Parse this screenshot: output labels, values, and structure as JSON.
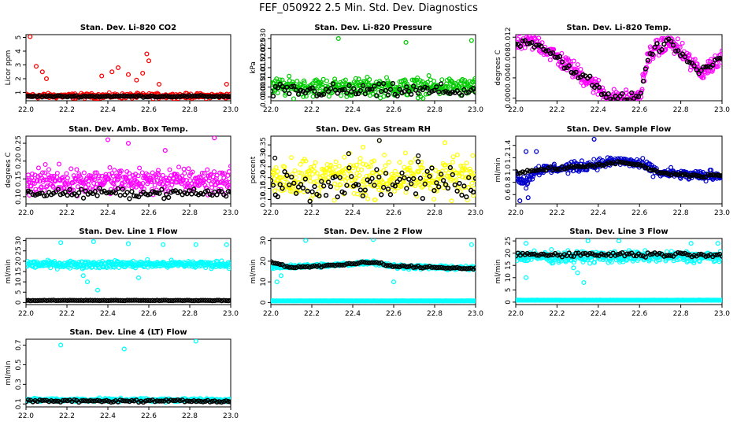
{
  "title": "FEF_050922  2.5 Min. Std. Dev. Diagnostics",
  "colors": {
    "background": "#ffffff",
    "frame": "#000000",
    "overlay": "#000000"
  },
  "chart_data": [
    {
      "type": "scatter",
      "title": "Stan. Dev. Li-820 CO2",
      "ylabel": "Licor ppm",
      "xlabel": "",
      "xlim": [
        22.0,
        23.0
      ],
      "ylim": [
        0.4,
        5.2
      ],
      "xticks": [
        "22.0",
        "22.2",
        "22.4",
        "22.6",
        "22.8",
        "23.0"
      ],
      "yticks": [
        "1",
        "2",
        "3",
        "4",
        "5"
      ],
      "series": [
        {
          "name": "scatter",
          "color": "#ff0000",
          "base": 0.75,
          "noise": 0.15,
          "spikes": [
            [
              22.02,
              5.05
            ],
            [
              22.05,
              2.9
            ],
            [
              22.08,
              2.5
            ],
            [
              22.1,
              2.0
            ],
            [
              22.37,
              2.2
            ],
            [
              22.42,
              2.5
            ],
            [
              22.45,
              2.8
            ],
            [
              22.5,
              2.3
            ],
            [
              22.54,
              1.9
            ],
            [
              22.57,
              2.4
            ],
            [
              22.59,
              3.8
            ],
            [
              22.6,
              3.3
            ],
            [
              22.65,
              1.6
            ],
            [
              22.98,
              1.6
            ]
          ]
        },
        {
          "name": "mean",
          "color": "#000000",
          "base": 0.72,
          "noise": 0.05,
          "spikes": []
        }
      ]
    },
    {
      "type": "scatter",
      "title": "Stan. Dev. Li-820 Pressure",
      "ylabel": "kPa",
      "xlabel": "",
      "xlim": [
        22.0,
        23.0
      ],
      "ylim": [
        -0.002,
        0.032
      ],
      "xticks": [
        "22.0",
        "22.2",
        "22.4",
        "22.6",
        "22.8",
        "23.0"
      ],
      "yticks": [
        "0.000",
        "0.005",
        "0.010",
        "0.015",
        "0.020",
        "0.025",
        "0.030"
      ],
      "series": [
        {
          "name": "scatter",
          "color": "#00cc00",
          "base": 0.005,
          "noise": 0.004,
          "spikes": [
            [
              22.33,
              0.03
            ],
            [
              22.66,
              0.028
            ],
            [
              22.98,
              0.029
            ]
          ]
        },
        {
          "name": "mean",
          "color": "#000000",
          "base": 0.003,
          "noise": 0.003,
          "spikes": []
        }
      ]
    },
    {
      "type": "scatter",
      "title": "Stan. Dev. Li-820 Temp.",
      "ylabel": "degrees C",
      "xlabel": "",
      "xlim": [
        22.0,
        23.0
      ],
      "ylim": [
        -0.0005,
        0.0125
      ],
      "xticks": [
        "22.0",
        "22.2",
        "22.4",
        "22.6",
        "22.8",
        "23.0"
      ],
      "yticks": [
        "0.000",
        "0.004",
        "0.008",
        "0.012"
      ],
      "series": [
        {
          "name": "scatter",
          "color": "#ff00ff",
          "curve": [
            [
              22.0,
              0.011
            ],
            [
              22.1,
              0.011
            ],
            [
              22.2,
              0.008
            ],
            [
              22.3,
              0.005
            ],
            [
              22.4,
              0.002
            ],
            [
              22.45,
              0.0
            ],
            [
              22.6,
              0.0
            ],
            [
              22.65,
              0.009
            ],
            [
              22.75,
              0.011
            ],
            [
              22.8,
              0.009
            ],
            [
              22.9,
              0.005
            ],
            [
              23.0,
              0.008
            ]
          ],
          "noise": 0.0015,
          "spikes": []
        },
        {
          "name": "mean",
          "color": "#000000",
          "curve": [
            [
              22.0,
              0.011
            ],
            [
              22.1,
              0.011
            ],
            [
              22.2,
              0.008
            ],
            [
              22.3,
              0.005
            ],
            [
              22.4,
              0.002
            ],
            [
              22.45,
              0.0
            ],
            [
              22.6,
              0.0
            ],
            [
              22.65,
              0.009
            ],
            [
              22.75,
              0.011
            ],
            [
              22.8,
              0.009
            ],
            [
              22.9,
              0.005
            ],
            [
              23.0,
              0.008
            ]
          ],
          "noise": 0.0008,
          "spikes": []
        }
      ]
    },
    {
      "type": "scatter",
      "title": "Stan. Dev. Amb. Box Temp.",
      "ylabel": "degrees C",
      "xlabel": "",
      "xlim": [
        22.0,
        23.0
      ],
      "ylim": [
        0.08,
        0.27
      ],
      "xticks": [
        "22.0",
        "22.2",
        "22.4",
        "22.6",
        "22.8",
        "23.0"
      ],
      "yticks": [
        "0.10",
        "0.15",
        "0.20",
        "0.25"
      ],
      "series": [
        {
          "name": "scatter",
          "color": "#ff00ff",
          "base": 0.145,
          "noise": 0.03,
          "spikes": [
            [
              22.4,
              0.26
            ],
            [
              22.5,
              0.25
            ],
            [
              22.92,
              0.265
            ],
            [
              22.68,
              0.23
            ]
          ]
        },
        {
          "name": "mean",
          "color": "#000000",
          "base": 0.11,
          "noise": 0.01,
          "spikes": []
        }
      ]
    },
    {
      "type": "scatter",
      "title": "Stan. Dev. Gas Stream RH",
      "ylabel": "percent",
      "xlabel": "",
      "xlim": [
        22.0,
        23.0
      ],
      "ylim": [
        0.08,
        0.39
      ],
      "xticks": [
        "22.0",
        "22.2",
        "22.4",
        "22.6",
        "22.8",
        "23.0"
      ],
      "yticks": [
        "0.10",
        "0.15",
        "0.20",
        "0.25",
        "0.30",
        "0.35"
      ],
      "series": [
        {
          "name": "scatter",
          "color": "#ffff00",
          "base": 0.2,
          "noise": 0.08,
          "spikes": [
            [
              22.53,
              0.37
            ],
            [
              22.85,
              0.36
            ],
            [
              22.45,
              0.34
            ]
          ]
        },
        {
          "name": "mean",
          "color": "#000000",
          "base": 0.18,
          "noise": 0.06,
          "spikes": [
            [
              22.53,
              0.37
            ],
            [
              22.38,
              0.31
            ],
            [
              22.72,
              0.3
            ],
            [
              22.02,
              0.29
            ]
          ]
        }
      ]
    },
    {
      "type": "scatter",
      "title": "Stan. Dev. Sample Flow",
      "ylabel": "ml/min",
      "xlabel": "",
      "xlim": [
        22.0,
        23.0
      ],
      "ylim": [
        0.45,
        1.55
      ],
      "xticks": [
        "22.0",
        "22.2",
        "22.4",
        "22.6",
        "22.8",
        "23.0"
      ],
      "yticks": [
        "0.6",
        "0.8",
        "1.0",
        "1.2",
        "1.4"
      ],
      "series": [
        {
          "name": "scatter",
          "color": "#0000cc",
          "curve": [
            [
              22.0,
              0.9
            ],
            [
              22.05,
              0.8
            ],
            [
              22.1,
              1.0
            ],
            [
              22.3,
              1.05
            ],
            [
              22.5,
              1.15
            ],
            [
              22.6,
              1.1
            ],
            [
              22.7,
              0.95
            ],
            [
              22.9,
              0.9
            ],
            [
              23.0,
              0.92
            ]
          ],
          "noise": 0.07,
          "spikes": [
            [
              22.02,
              0.5
            ],
            [
              22.06,
              0.55
            ],
            [
              22.1,
              1.3
            ],
            [
              22.38,
              1.5
            ],
            [
              22.05,
              1.3
            ]
          ]
        },
        {
          "name": "mean",
          "color": "#000000",
          "curve": [
            [
              22.0,
              0.95
            ],
            [
              22.1,
              1.0
            ],
            [
              22.3,
              1.05
            ],
            [
              22.5,
              1.12
            ],
            [
              22.6,
              1.08
            ],
            [
              22.7,
              0.95
            ],
            [
              22.9,
              0.9
            ],
            [
              23.0,
              0.92
            ]
          ],
          "noise": 0.02,
          "spikes": []
        }
      ]
    },
    {
      "type": "scatter",
      "title": "Stan. Dev. Line 1 Flow",
      "ylabel": "ml/min",
      "xlabel": "",
      "xlim": [
        22.0,
        23.0
      ],
      "ylim": [
        -1,
        31
      ],
      "xticks": [
        "22.0",
        "22.2",
        "22.4",
        "22.6",
        "22.8",
        "23.0"
      ],
      "yticks": [
        "0",
        "5",
        "10",
        "15",
        "20",
        "25",
        "30"
      ],
      "series": [
        {
          "name": "scatter",
          "color": "#00ffff",
          "base": 18.5,
          "noise": 1.5,
          "spikes": [
            [
              22.17,
              29
            ],
            [
              22.33,
              29.5
            ],
            [
              22.5,
              28.5
            ],
            [
              22.67,
              28
            ],
            [
              22.83,
              28
            ],
            [
              22.98,
              28
            ],
            [
              22.35,
              6
            ],
            [
              22.55,
              12
            ],
            [
              22.28,
              13
            ],
            [
              22.3,
              10
            ]
          ]
        },
        {
          "name": "mean",
          "color": "#000000",
          "base": 1.0,
          "noise": 0.1,
          "spikes": []
        }
      ]
    },
    {
      "type": "scatter",
      "title": "Stan. Dev. Line 2 Flow",
      "ylabel": "ml/min",
      "xlabel": "",
      "xlim": [
        22.0,
        23.0
      ],
      "ylim": [
        -1,
        31
      ],
      "xticks": [
        "22.0",
        "22.2",
        "22.4",
        "22.6",
        "22.8",
        "23.0"
      ],
      "yticks": [
        "0",
        "10",
        "20",
        "30"
      ],
      "series": [
        {
          "name": "scatter",
          "color": "#00ffff",
          "curve": [
            [
              22.0,
              17
            ],
            [
              22.1,
              17.5
            ],
            [
              22.3,
              18
            ],
            [
              22.5,
              19.5
            ],
            [
              22.6,
              17.5
            ],
            [
              23.0,
              16.5
            ]
          ],
          "noise": 0.8,
          "spikes": [
            [
              22.05,
              13
            ],
            [
              22.03,
              10
            ],
            [
              22.17,
              30
            ],
            [
              22.5,
              30.5
            ],
            [
              22.98,
              28
            ],
            [
              22.6,
              10
            ]
          ]
        },
        {
          "name": "zero",
          "color": "#00ffff",
          "base": 0.8,
          "noise": 0.05,
          "spikes": []
        },
        {
          "name": "mean",
          "color": "#000000",
          "curve": [
            [
              22.0,
              19.5
            ],
            [
              22.1,
              17
            ],
            [
              22.3,
              18
            ],
            [
              22.5,
              19.5
            ],
            [
              22.6,
              17.5
            ],
            [
              23.0,
              16.5
            ]
          ],
          "noise": 0.4,
          "spikes": []
        }
      ]
    },
    {
      "type": "scatter",
      "title": "Stan. Dev. Line 3 Flow",
      "ylabel": "ml/min",
      "xlabel": "",
      "xlim": [
        22.0,
        23.0
      ],
      "ylim": [
        -1,
        26
      ],
      "xticks": [
        "22.0",
        "22.2",
        "22.4",
        "22.6",
        "22.8",
        "23.0"
      ],
      "yticks": [
        "0",
        "5",
        "10",
        "15",
        "20",
        "25"
      ],
      "series": [
        {
          "name": "scatter",
          "color": "#00ffff",
          "base": 18.5,
          "noise": 2.0,
          "spikes": [
            [
              22.05,
              24
            ],
            [
              22.35,
              25
            ],
            [
              22.5,
              25
            ],
            [
              22.85,
              24
            ],
            [
              22.98,
              24
            ],
            [
              22.3,
              12
            ],
            [
              22.33,
              8
            ],
            [
              22.28,
              14
            ],
            [
              22.05,
              10
            ]
          ]
        },
        {
          "name": "zero",
          "color": "#00ffff",
          "base": 0.8,
          "noise": 0.05,
          "spikes": []
        },
        {
          "name": "mean",
          "color": "#000000",
          "base": 19.5,
          "noise": 0.8,
          "spikes": []
        }
      ]
    },
    {
      "type": "scatter",
      "title": "Stan. Dev. Line 4 (LT) Flow",
      "ylabel": "ml/min",
      "xlabel": "",
      "xlim": [
        22.0,
        23.0
      ],
      "ylim": [
        0.07,
        0.76
      ],
      "xticks": [
        "22.0",
        "22.2",
        "22.4",
        "22.6",
        "22.8",
        "23.0"
      ],
      "yticks": [
        "0.1",
        "0.3",
        "0.5",
        "0.7"
      ],
      "series": [
        {
          "name": "scatter",
          "color": "#00ffff",
          "base": 0.14,
          "noise": 0.015,
          "spikes": [
            [
              22.17,
              0.7
            ],
            [
              22.48,
              0.66
            ],
            [
              22.83,
              0.74
            ]
          ]
        },
        {
          "name": "mean",
          "color": "#000000",
          "base": 0.13,
          "noise": 0.01,
          "spikes": []
        }
      ]
    }
  ]
}
